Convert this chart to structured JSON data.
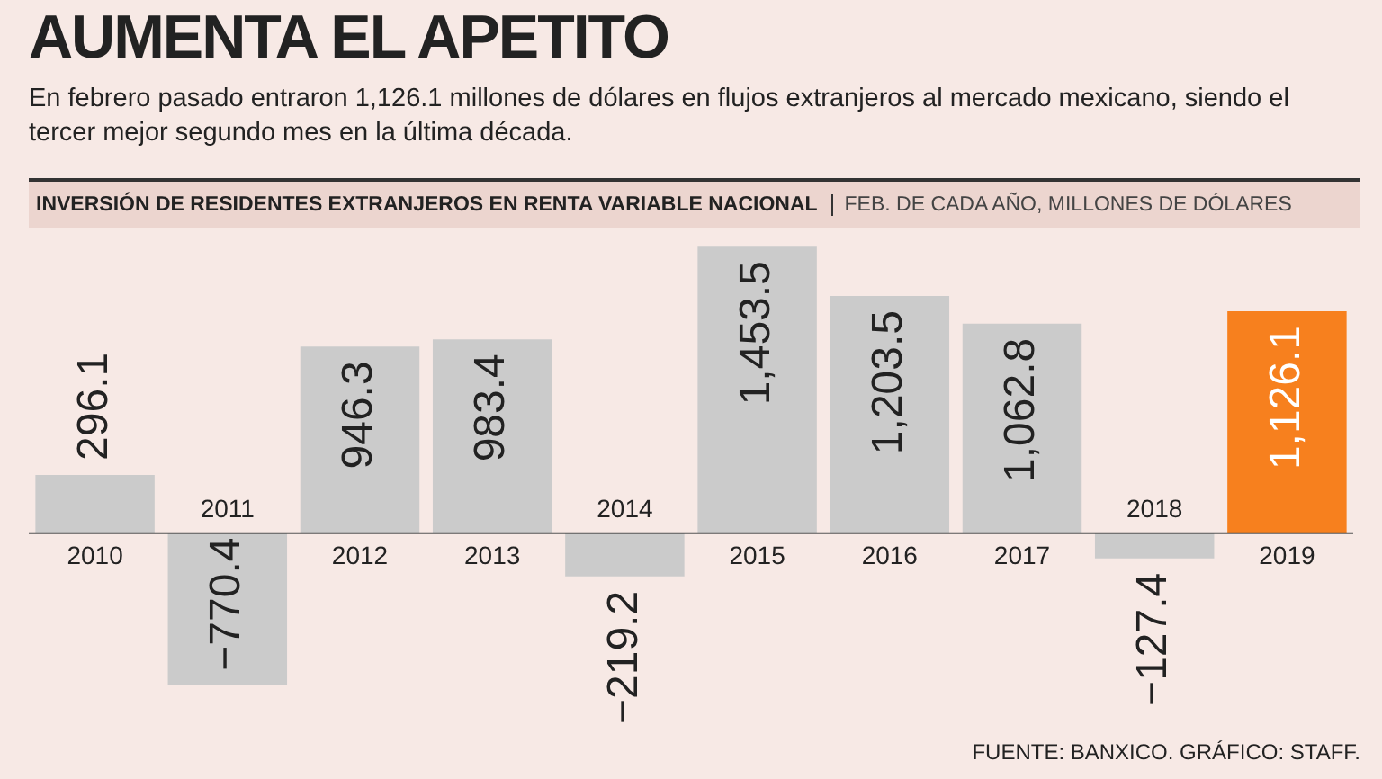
{
  "chart_data": {
    "type": "bar",
    "title": "AUMENTA EL APETITO",
    "subtitle": "En febrero pasado entraron 1,126.1 millones de dólares en flujos extranjeros al mercado mexicano, siendo el tercer mejor segundo mes en la última década.",
    "annotations": [
      "INVERSIÓN DE RESIDENTES EXTRANJEROS EN RENTA VARIABLE NACIONAL",
      "FEB. DE CADA AÑO, MILLONES DE DÓLARES",
      "FUENTE: BANXICO. GRÁFICO: STAFF."
    ],
    "categories": [
      "2010",
      "2011",
      "2012",
      "2013",
      "2014",
      "2015",
      "2016",
      "2017",
      "2018",
      "2019"
    ],
    "values": [
      296.1,
      -770.4,
      946.3,
      983.4,
      -219.2,
      1453.5,
      1203.5,
      1062.8,
      -127.4,
      1126.1
    ],
    "value_labels": [
      "296.1",
      "−770.4",
      "946.3",
      "983.4",
      "−219.2",
      "1,453.5",
      "1,203.5",
      "1,062.8",
      "−127.4",
      "1,126.1"
    ],
    "colors": [
      "#cbcbcb",
      "#cbcbcb",
      "#cbcbcb",
      "#cbcbcb",
      "#cbcbcb",
      "#cbcbcb",
      "#cbcbcb",
      "#cbcbcb",
      "#cbcbcb",
      "#f7801e"
    ],
    "legend": false
  }
}
